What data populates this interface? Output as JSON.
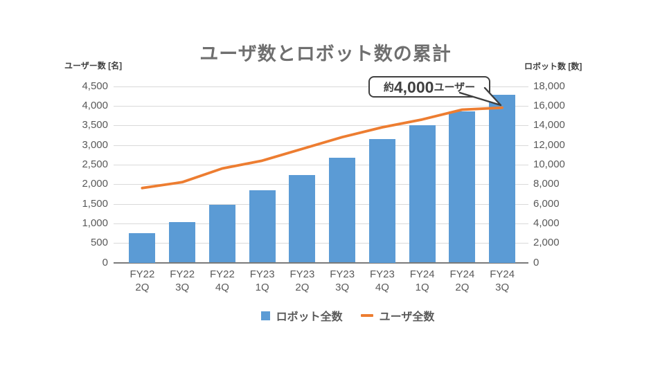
{
  "chart_data": {
    "type": "combo-bar-line",
    "title": "ユーザ数とロボット数の累計",
    "categories": [
      "FY22 2Q",
      "FY22 3Q",
      "FY22 4Q",
      "FY23 1Q",
      "FY23 2Q",
      "FY23 3Q",
      "FY23 4Q",
      "FY24 1Q",
      "FY24 2Q",
      "FY24 3Q"
    ],
    "series": [
      {
        "name": "ロボット全数",
        "type": "bar",
        "axis": "right",
        "color": "#5b9bd5",
        "values": [
          3000,
          4100,
          5900,
          7400,
          8900,
          10700,
          12600,
          14000,
          15400,
          17100
        ]
      },
      {
        "name": "ユーザ全数",
        "type": "line",
        "axis": "left",
        "color": "#ed7d31",
        "values": [
          1900,
          2050,
          2400,
          2600,
          2900,
          3200,
          3450,
          3650,
          3900,
          3950
        ]
      }
    ],
    "left_axis": {
      "label": "ユーザー数 [名]",
      "ylim": [
        0,
        4500
      ],
      "tick_step": 500,
      "tick_labels": [
        "4,500",
        "4,000",
        "3,500",
        "3,000",
        "2,500",
        "2,000",
        "1,500",
        "1,000",
        "500",
        "0"
      ]
    },
    "right_axis": {
      "label": "ロボット数 [数]",
      "ylim": [
        0,
        18000
      ],
      "tick_step": 2000,
      "tick_labels": [
        "18,000",
        "16,000",
        "14,000",
        "12,000",
        "10,000",
        "8,000",
        "6,000",
        "4,000",
        "2,000",
        "0"
      ]
    },
    "grid": true,
    "legend_position": "bottom",
    "annotation": {
      "prefix": "約",
      "value": "4,000",
      "suffix": "ユーザー",
      "target_category": "FY24 3Q"
    }
  },
  "colors": {
    "bar": "#5b9bd5",
    "line": "#ed7d31",
    "gridline": "#d9d9d9",
    "axis_line": "#7a7a7a",
    "tick_text": "#595959",
    "title_text": "#6f6f6f",
    "unit_text": "#404040",
    "callout_border": "#3f3f3f",
    "background": "#ffffff"
  }
}
